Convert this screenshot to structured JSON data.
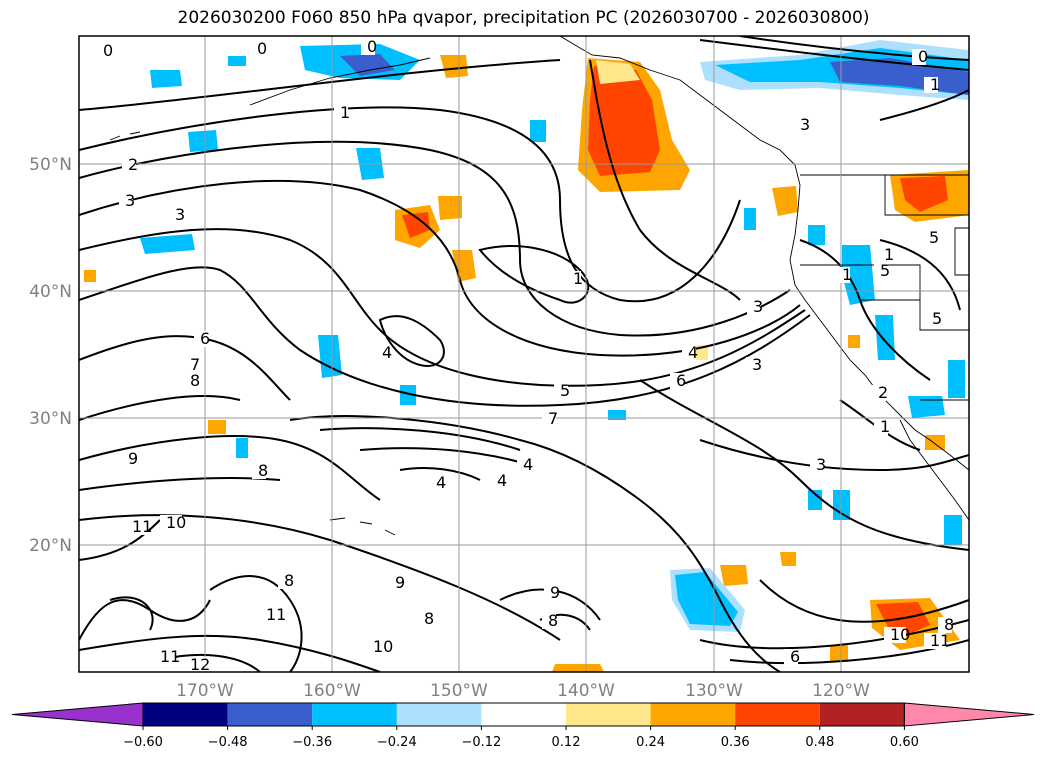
{
  "title": "2026030200 F060 850 hPa qvapor, precipitation PC (2026030700 - 2026030800)",
  "lat_labels": [
    "50°N",
    "40°N",
    "30°N",
    "20°N"
  ],
  "lon_labels": [
    "170°W",
    "160°W",
    "150°W",
    "140°W",
    "130°W",
    "120°W"
  ],
  "contour_labels": [
    "0",
    "0",
    "0",
    "0",
    "1",
    "1",
    "2",
    "3",
    "3",
    "1",
    "3",
    "4",
    "3",
    "4",
    "5",
    "6",
    "7",
    "6",
    "7",
    "8",
    "9",
    "8",
    "4",
    "4",
    "4",
    "3",
    "1",
    "11",
    "10",
    "9",
    "8",
    "11",
    "8",
    "11",
    "12",
    "10",
    "9",
    "6",
    "8",
    "3",
    "5",
    "5",
    "1",
    "2",
    "1",
    "5",
    "10",
    "8",
    "11"
  ],
  "colorbar": {
    "ticks": [
      "−0.60",
      "−0.48",
      "−0.36",
      "−0.24",
      "−0.12",
      "0.12",
      "0.24",
      "0.36",
      "0.48",
      "0.60"
    ],
    "colors": [
      "#9932CC",
      "#000080",
      "#3A5FCD",
      "#00BFFF",
      "#ADDFFF",
      "#FFFFFF",
      "#FFE88C",
      "#FFA500",
      "#FF4500",
      "#B22222",
      "#FF88AA"
    ]
  }
}
